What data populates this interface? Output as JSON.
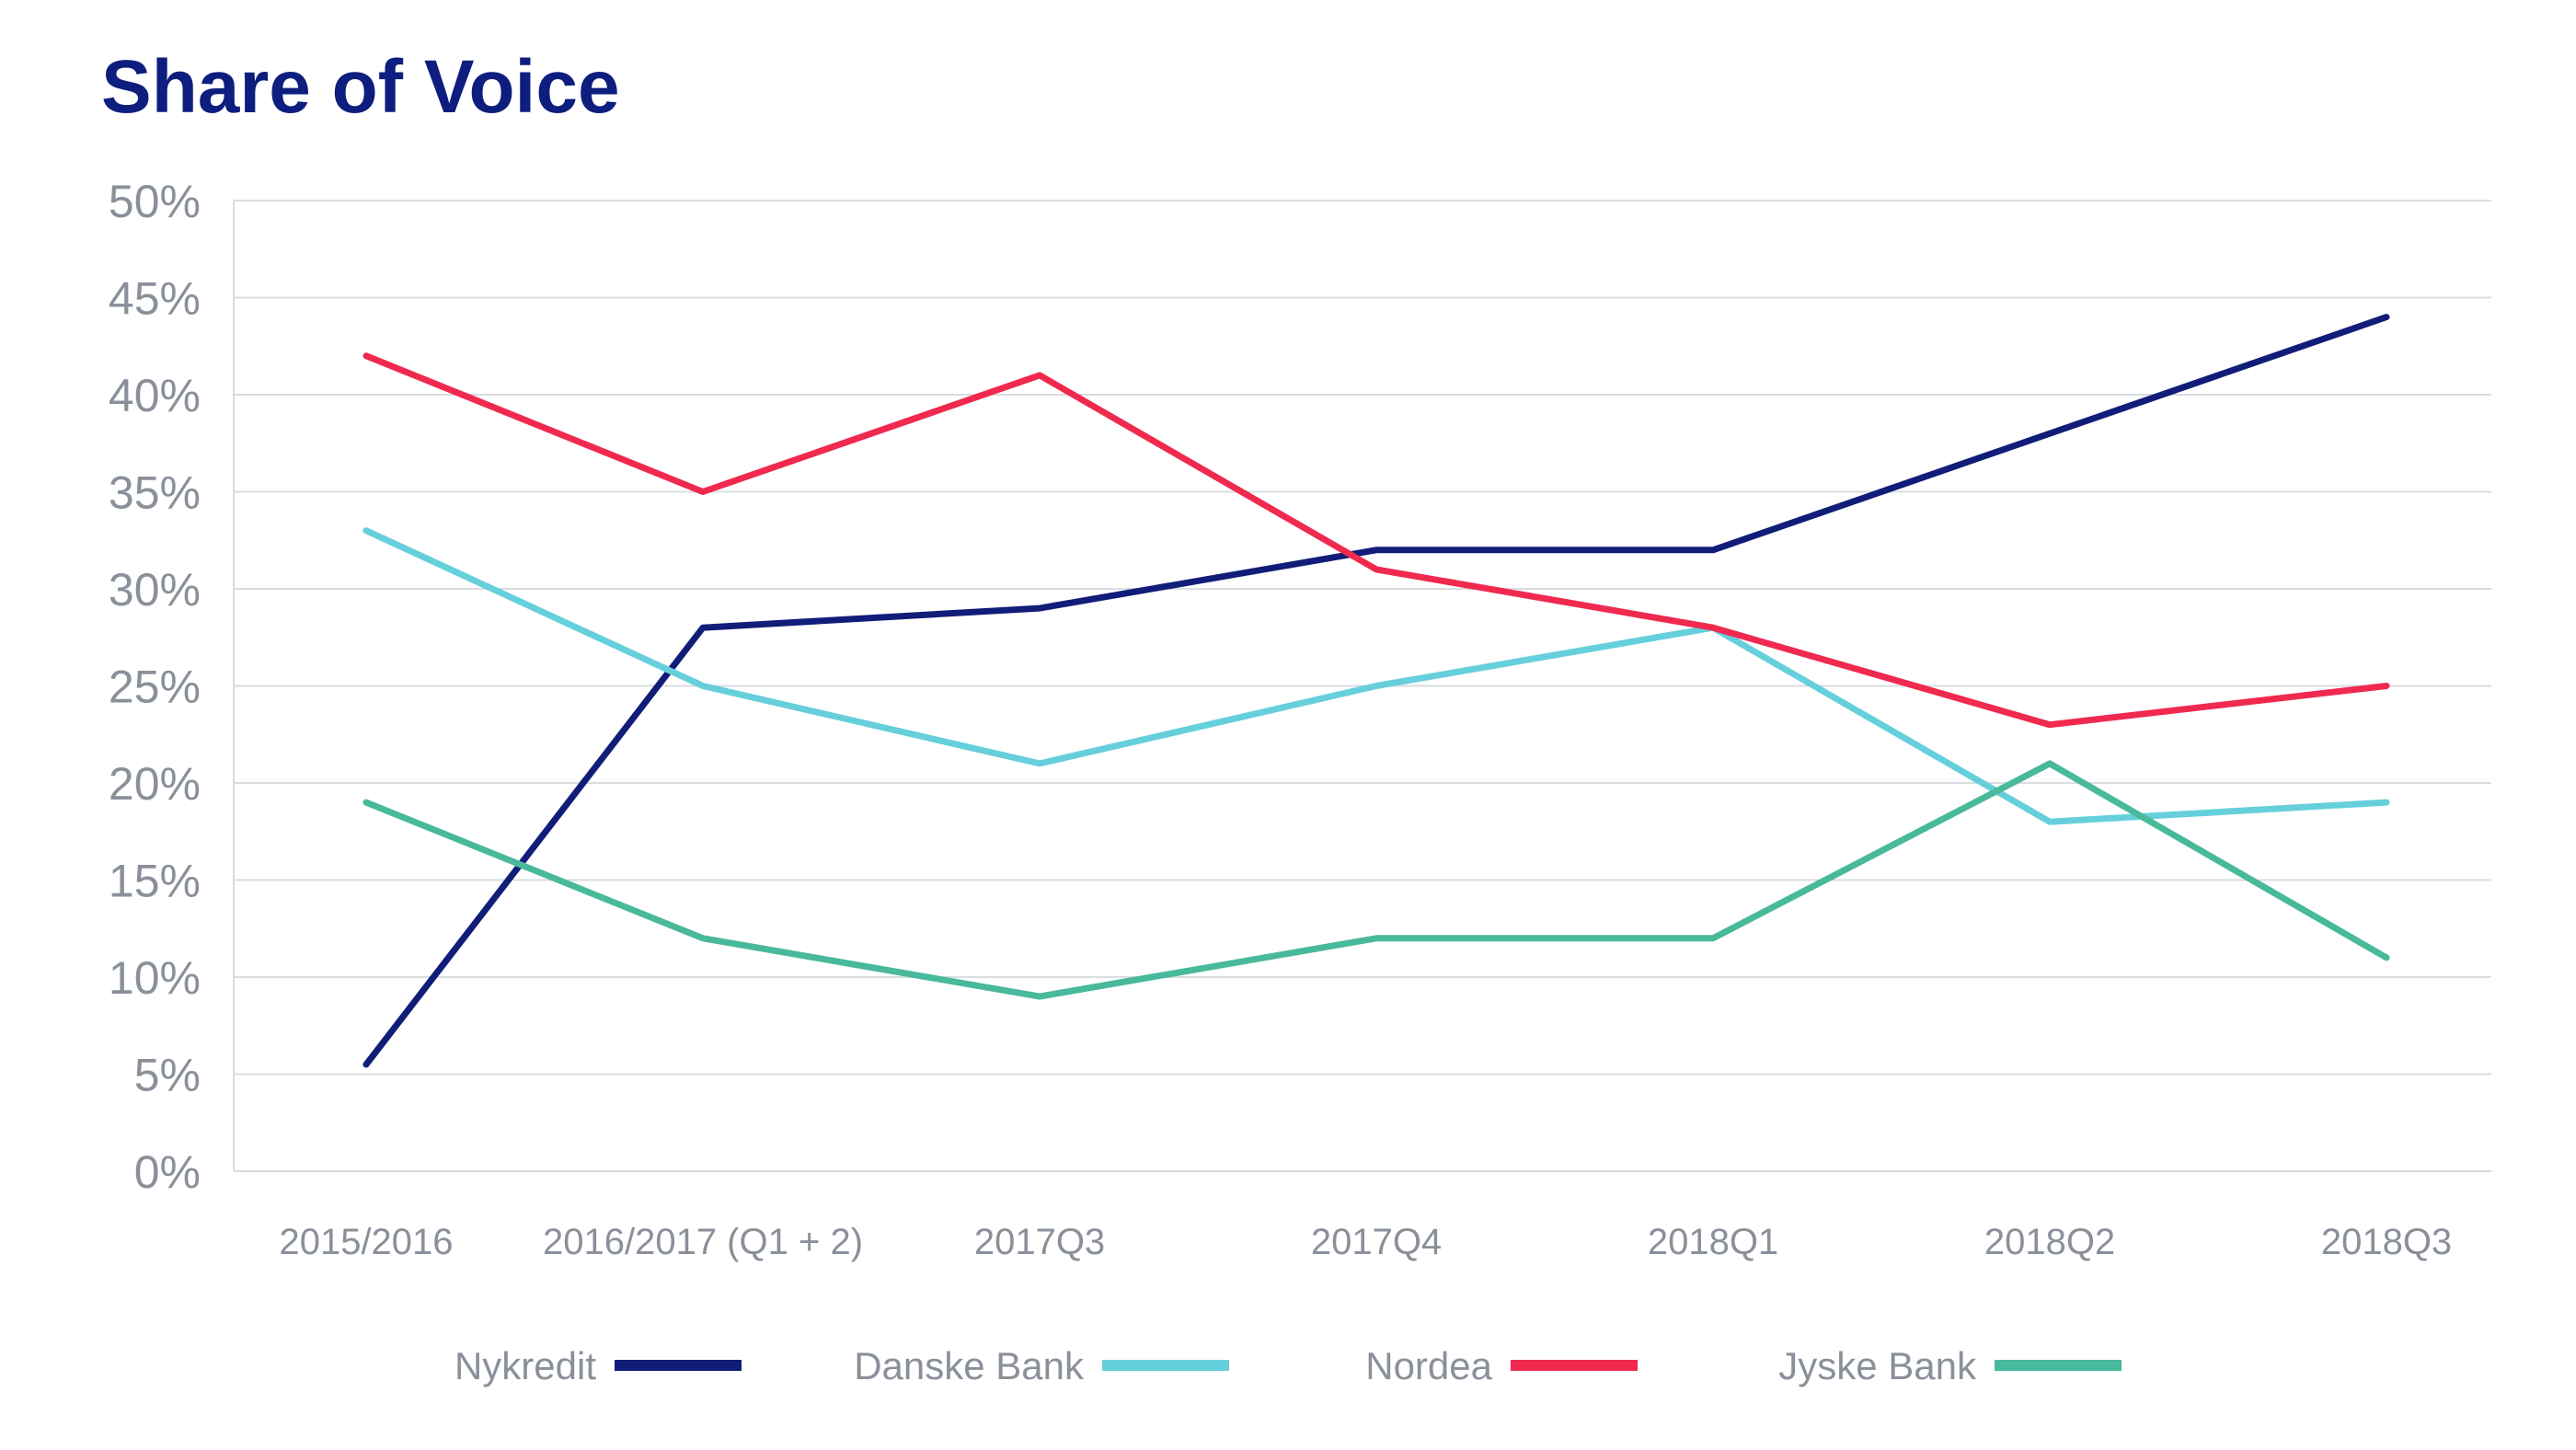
{
  "chart_data": {
    "type": "line",
    "title": "Share of Voice",
    "xlabel": "",
    "ylabel": "",
    "categories": [
      "2015/2016",
      "2016/2017 (Q1 + 2)",
      "2017Q3",
      "2017Q4",
      "2018Q1",
      "2018Q2",
      "2018Q3"
    ],
    "ylim": [
      0,
      50
    ],
    "yticks": [
      "0%",
      "5%",
      "10%",
      "15%",
      "20%",
      "25%",
      "30%",
      "35%",
      "40%",
      "45%",
      "50%"
    ],
    "grid": "horizontal",
    "legend": "bottom",
    "series": [
      {
        "name": "Nykredit",
        "color": "#111d78",
        "values": [
          5.5,
          28,
          29,
          32,
          32,
          38,
          44
        ]
      },
      {
        "name": "Danske Bank",
        "color": "#66cfdc",
        "values": [
          33,
          25,
          21,
          25,
          28,
          18,
          19
        ]
      },
      {
        "name": "Nordea",
        "color": "#f0294f",
        "values": [
          42,
          35,
          41,
          31,
          28,
          23,
          25
        ]
      },
      {
        "name": "Jyske Bank",
        "color": "#48b99a",
        "values": [
          19,
          12,
          9,
          12,
          12,
          21,
          11
        ]
      }
    ]
  }
}
